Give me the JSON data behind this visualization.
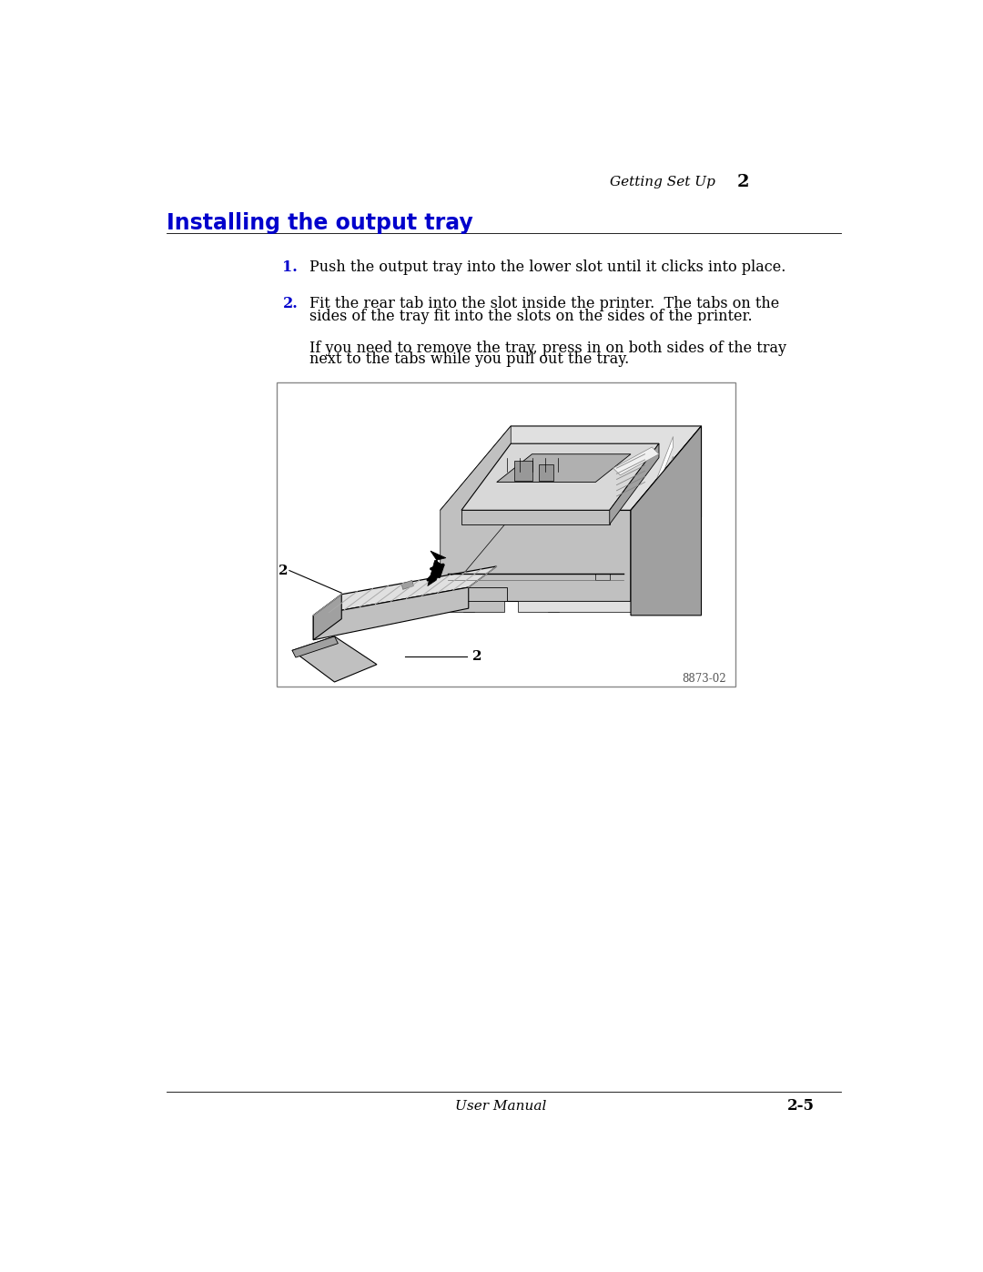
{
  "bg_color": "#ffffff",
  "header_text": "Getting Set Up",
  "header_number": "2",
  "title": "Installing the output tray",
  "title_color": "#0000cc",
  "title_fontsize": 17,
  "step1_num": "1.",
  "step1_text": "Push the output tray into the lower slot until it clicks into place.",
  "step2_num": "2.",
  "step2_line1": "Fit the rear tab into the slot inside the printer.  The tabs on the",
  "step2_line2": "sides of the tray fit into the slots on the sides of the printer.",
  "note_line1": "If you need to remove the tray, press in on both sides of the tray",
  "note_line2": "next to the tabs while you pull out the tray.",
  "footer_left": "User Manual",
  "footer_right": "2-5",
  "image_caption": "8873-02",
  "body_fontsize": 11.5,
  "step_num_color": "#0000cc",
  "body_color": "#000000",
  "header_fontsize": 11,
  "footer_fontsize": 11
}
